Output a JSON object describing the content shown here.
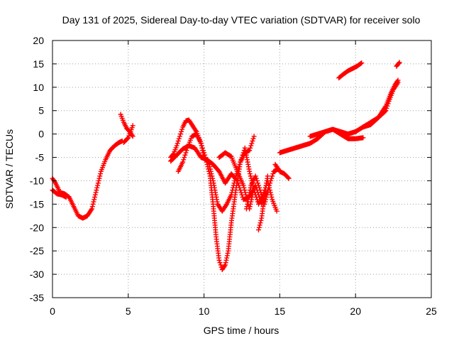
{
  "chart_data": {
    "type": "scatter",
    "title": "Day 131 of 2025, Sidereal Day-to-day VTEC variation (SDTVAR) for receiver solo",
    "xlabel": "GPS time / hours",
    "ylabel": "SDTVAR / TECUs",
    "xlim": [
      0,
      25
    ],
    "ylim": [
      -35,
      20
    ],
    "x_ticks": [
      0,
      5,
      10,
      15,
      20,
      25
    ],
    "y_ticks": [
      -35,
      -30,
      -25,
      -20,
      -15,
      -10,
      -5,
      0,
      5,
      10,
      15,
      20
    ],
    "grid": true,
    "legend": "none",
    "marker": "plus",
    "color": "#ff0000",
    "series": [
      {
        "x": [
          0.0,
          0.2,
          0.5,
          0.8,
          1.1,
          1.4,
          1.7,
          2.0,
          2.3,
          2.6,
          2.9,
          3.2,
          3.5,
          3.8,
          4.1,
          4.4,
          4.6
        ],
        "y": [
          -9.5,
          -10.5,
          -12.5,
          -12.8,
          -13.5,
          -15.5,
          -17.5,
          -18.0,
          -17.5,
          -16.0,
          -12.0,
          -8.0,
          -5.5,
          -3.5,
          -2.5,
          -1.8,
          -1.5
        ]
      },
      {
        "x": [
          0.0,
          0.3,
          0.6,
          0.9
        ],
        "y": [
          -12.0,
          -12.8,
          -13.0,
          -13.5
        ]
      },
      {
        "x": [
          4.5,
          4.7,
          4.9,
          5.1,
          5.3
        ],
        "y": [
          4.2,
          2.5,
          1.2,
          0.5,
          -0.5
        ]
      },
      {
        "x": [
          4.7,
          5.0,
          5.3
        ],
        "y": [
          -1.8,
          -0.8,
          1.8
        ]
      },
      {
        "x": [
          7.8,
          8.0,
          8.2,
          8.4,
          8.6,
          8.8,
          9.0,
          9.2,
          9.5,
          9.8,
          10.1,
          10.4,
          10.6,
          10.8,
          11.0,
          11.2,
          11.4,
          11.6,
          11.8,
          12.1,
          12.4,
          12.7,
          13.0,
          13.3,
          13.6,
          13.9,
          14.2,
          14.5,
          14.8
        ],
        "y": [
          -5.0,
          -4.2,
          -2.5,
          -0.5,
          1.5,
          2.8,
          3.0,
          2.0,
          0.5,
          -2.0,
          -5.0,
          -9.0,
          -15.0,
          -22.0,
          -27.0,
          -29.0,
          -28.0,
          -25.0,
          -19.0,
          -12.0,
          -6.0,
          -3.0,
          -8.0,
          -12.0,
          -15.0,
          -13.0,
          -10.0,
          -14.0,
          -16.5
        ]
      },
      {
        "x": [
          7.8,
          8.2,
          8.6,
          9.0,
          9.4,
          9.8,
          10.2,
          10.6,
          11.0,
          11.4,
          11.8,
          12.2,
          12.6,
          13.0,
          13.4,
          13.8,
          14.2
        ],
        "y": [
          -5.8,
          -4.5,
          -3.2,
          -2.5,
          -3.0,
          -5.0,
          -5.5,
          -6.5,
          -8.0,
          -10.5,
          -8.5,
          -10.0,
          -14.0,
          -13.5,
          -11.0,
          -15.0,
          -12.0
        ]
      },
      {
        "x": [
          8.3,
          8.6,
          8.9,
          9.2,
          9.5,
          9.8,
          10.0,
          10.3,
          10.6,
          10.9,
          11.2,
          11.5,
          11.8,
          12.1,
          12.4,
          12.7,
          13.0,
          13.3
        ],
        "y": [
          -8.0,
          -6.0,
          -3.0,
          -0.5,
          0.0,
          -2.0,
          -5.0,
          -6.0,
          -10.0,
          -15.0,
          -16.5,
          -15.0,
          -13.0,
          -9.0,
          -6.0,
          -4.0,
          -3.5,
          -0.5
        ]
      },
      {
        "x": [
          11.0,
          11.4,
          11.8,
          12.2,
          12.6,
          13.0,
          13.2
        ],
        "y": [
          -5.0,
          -4.0,
          -4.8,
          -8.0,
          -11.0,
          -16.0,
          -13.0
        ]
      },
      {
        "x": [
          12.8,
          13.1,
          13.4,
          13.7,
          14.0,
          14.3,
          14.6,
          14.9
        ],
        "y": [
          -16.0,
          -11.0,
          -9.0,
          -12.0,
          -15.0,
          -11.0,
          -8.0,
          -7.5
        ]
      },
      {
        "x": [
          13.6,
          13.8,
          14.0,
          14.2
        ],
        "y": [
          -20.5,
          -18.0,
          -13.0,
          -9.0
        ]
      },
      {
        "x": [
          14.7,
          15.0,
          15.3,
          15.6
        ],
        "y": [
          -6.5,
          -8.0,
          -8.5,
          -9.5
        ]
      },
      {
        "x": [
          15.0,
          15.5,
          16.0,
          16.5,
          17.0,
          17.5,
          18.0,
          18.5,
          19.0,
          19.5,
          20.0,
          20.5,
          21.0,
          21.5,
          22.0,
          22.3,
          22.6,
          22.8
        ],
        "y": [
          -4.0,
          -3.5,
          -3.0,
          -2.5,
          -2.0,
          -1.0,
          0.5,
          1.0,
          0.5,
          0.0,
          0.5,
          1.5,
          2.5,
          3.5,
          6.0,
          8.5,
          10.5,
          11.5
        ]
      },
      {
        "x": [
          17.0,
          17.5,
          18.0,
          18.5,
          19.0,
          19.5,
          20.0,
          20.5
        ],
        "y": [
          -0.5,
          0.0,
          0.5,
          1.0,
          0.0,
          -1.0,
          -1.0,
          -0.8
        ]
      },
      {
        "x": [
          20.5,
          21.0,
          21.5,
          22.0,
          22.2,
          22.5,
          22.8
        ],
        "y": [
          1.5,
          2.0,
          3.5,
          5.0,
          7.0,
          9.5,
          11.0
        ]
      },
      {
        "x": [
          18.9,
          19.2,
          19.5,
          19.8,
          20.1,
          20.4
        ],
        "y": [
          12.0,
          12.8,
          13.5,
          14.0,
          14.5,
          15.2
        ]
      },
      {
        "x": [
          22.7,
          22.9
        ],
        "y": [
          14.5,
          15.3
        ]
      }
    ]
  }
}
